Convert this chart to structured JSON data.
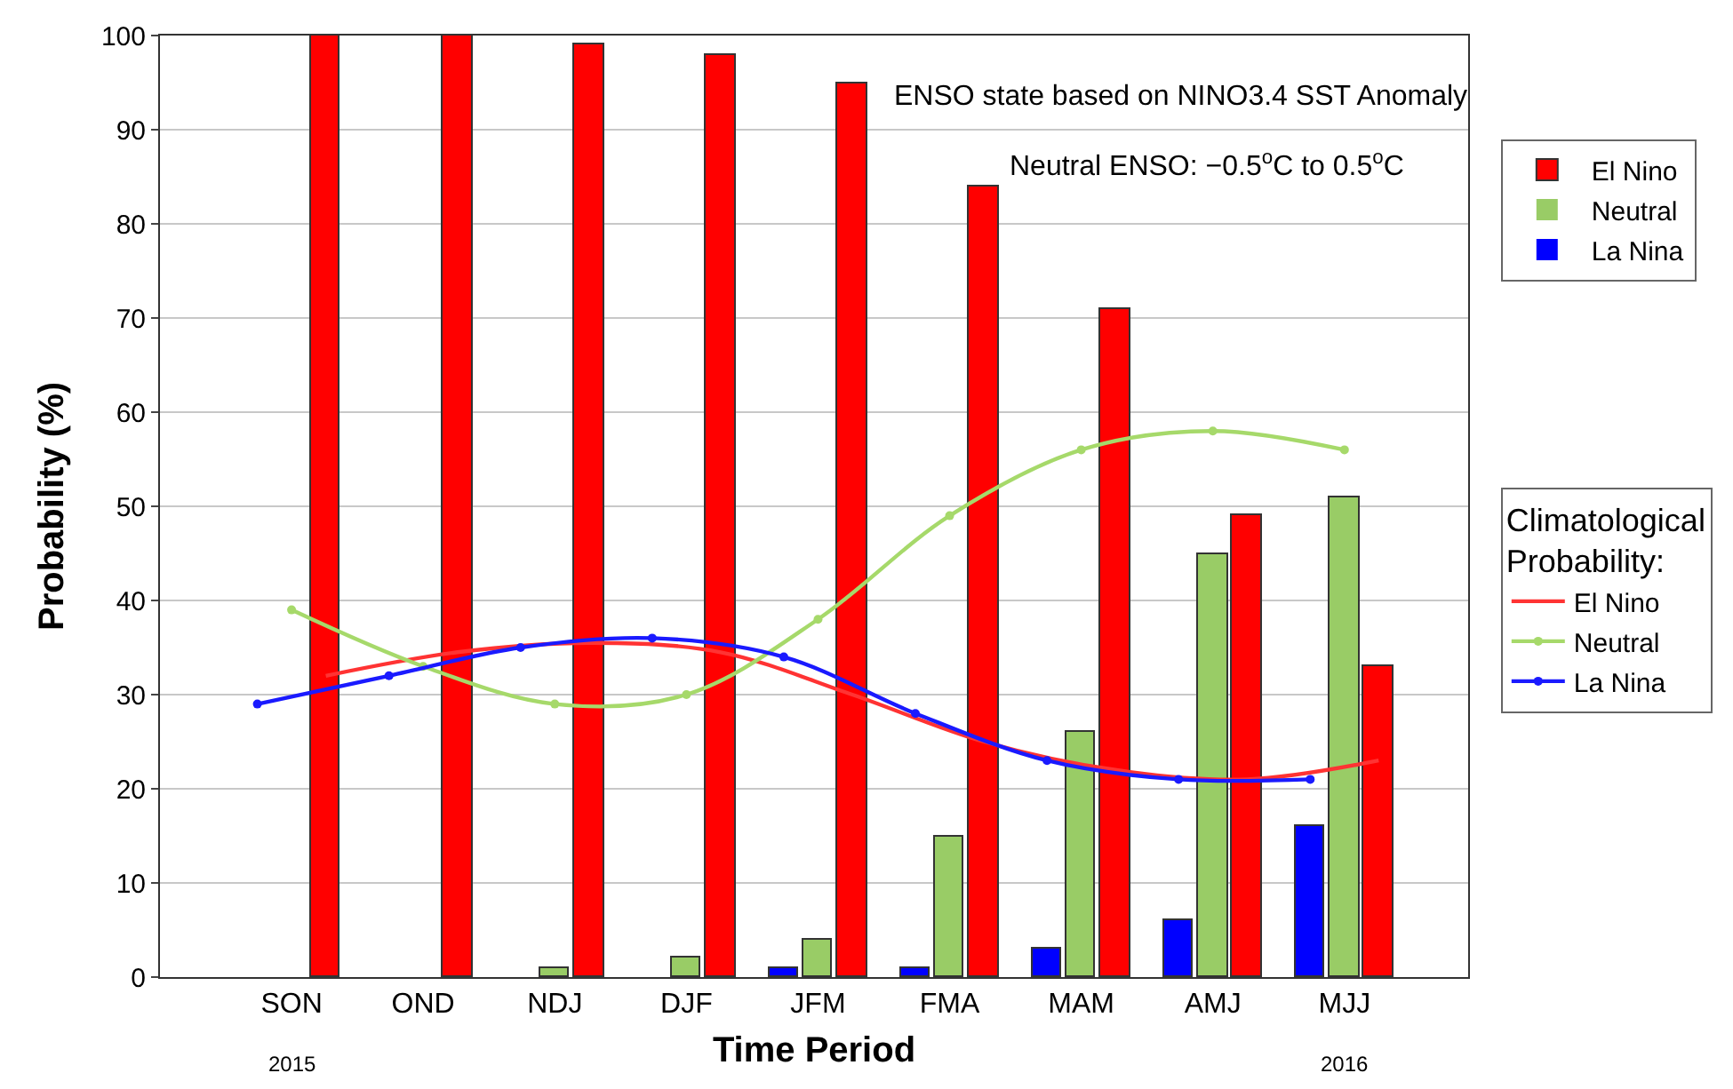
{
  "chart_data": {
    "type": "bar",
    "xlabel": "Time Period",
    "ylabel": "Probability (%)",
    "legend_title": "Climatological Probability:",
    "categories": [
      "SON",
      "OND",
      "NDJ",
      "DJF",
      "JFM",
      "FMA",
      "MAM",
      "AMJ",
      "MJJ"
    ],
    "series": [
      {
        "name": "El Nino",
        "color": "#ff0000",
        "values": [
          100,
          100,
          99,
          98,
          95,
          84,
          71,
          49,
          33
        ]
      },
      {
        "name": "Neutral",
        "color": "#99cc66",
        "values": [
          0,
          0,
          1,
          2,
          4,
          15,
          26,
          45,
          51
        ]
      },
      {
        "name": "La Nina",
        "color": "#0000ff",
        "values": [
          0,
          0,
          0,
          0,
          1,
          1,
          3,
          6,
          16
        ]
      },
      {
        "name": "El Nino",
        "type": "line",
        "marker": "none",
        "color": "#ff3333",
        "values": [
          32,
          34.5,
          35.5,
          34.5,
          30,
          25,
          22,
          21,
          23
        ]
      },
      {
        "name": "Neutral",
        "type": "line",
        "marker": "circle",
        "color": "#a6d96a",
        "values": [
          39,
          33,
          29,
          30,
          38,
          49,
          56,
          58,
          56
        ]
      },
      {
        "name": "La Nina",
        "type": "line",
        "marker": "circle",
        "color": "#1a1aff",
        "values": [
          29,
          32,
          35,
          36,
          34,
          28,
          23,
          21,
          21
        ]
      }
    ],
    "ylim": [
      0,
      100
    ],
    "yticks": [
      0,
      10,
      20,
      30,
      40,
      50,
      60,
      70,
      80,
      90,
      100
    ],
    "grid": "y",
    "legend": "right",
    "annotations": [
      "ENSO state based on NINO3.4 SST Anomaly",
      "Neutral ENSO: −0.5$^{o}$C to 0.5$^{o}$C",
      "2015",
      "2016"
    ]
  }
}
